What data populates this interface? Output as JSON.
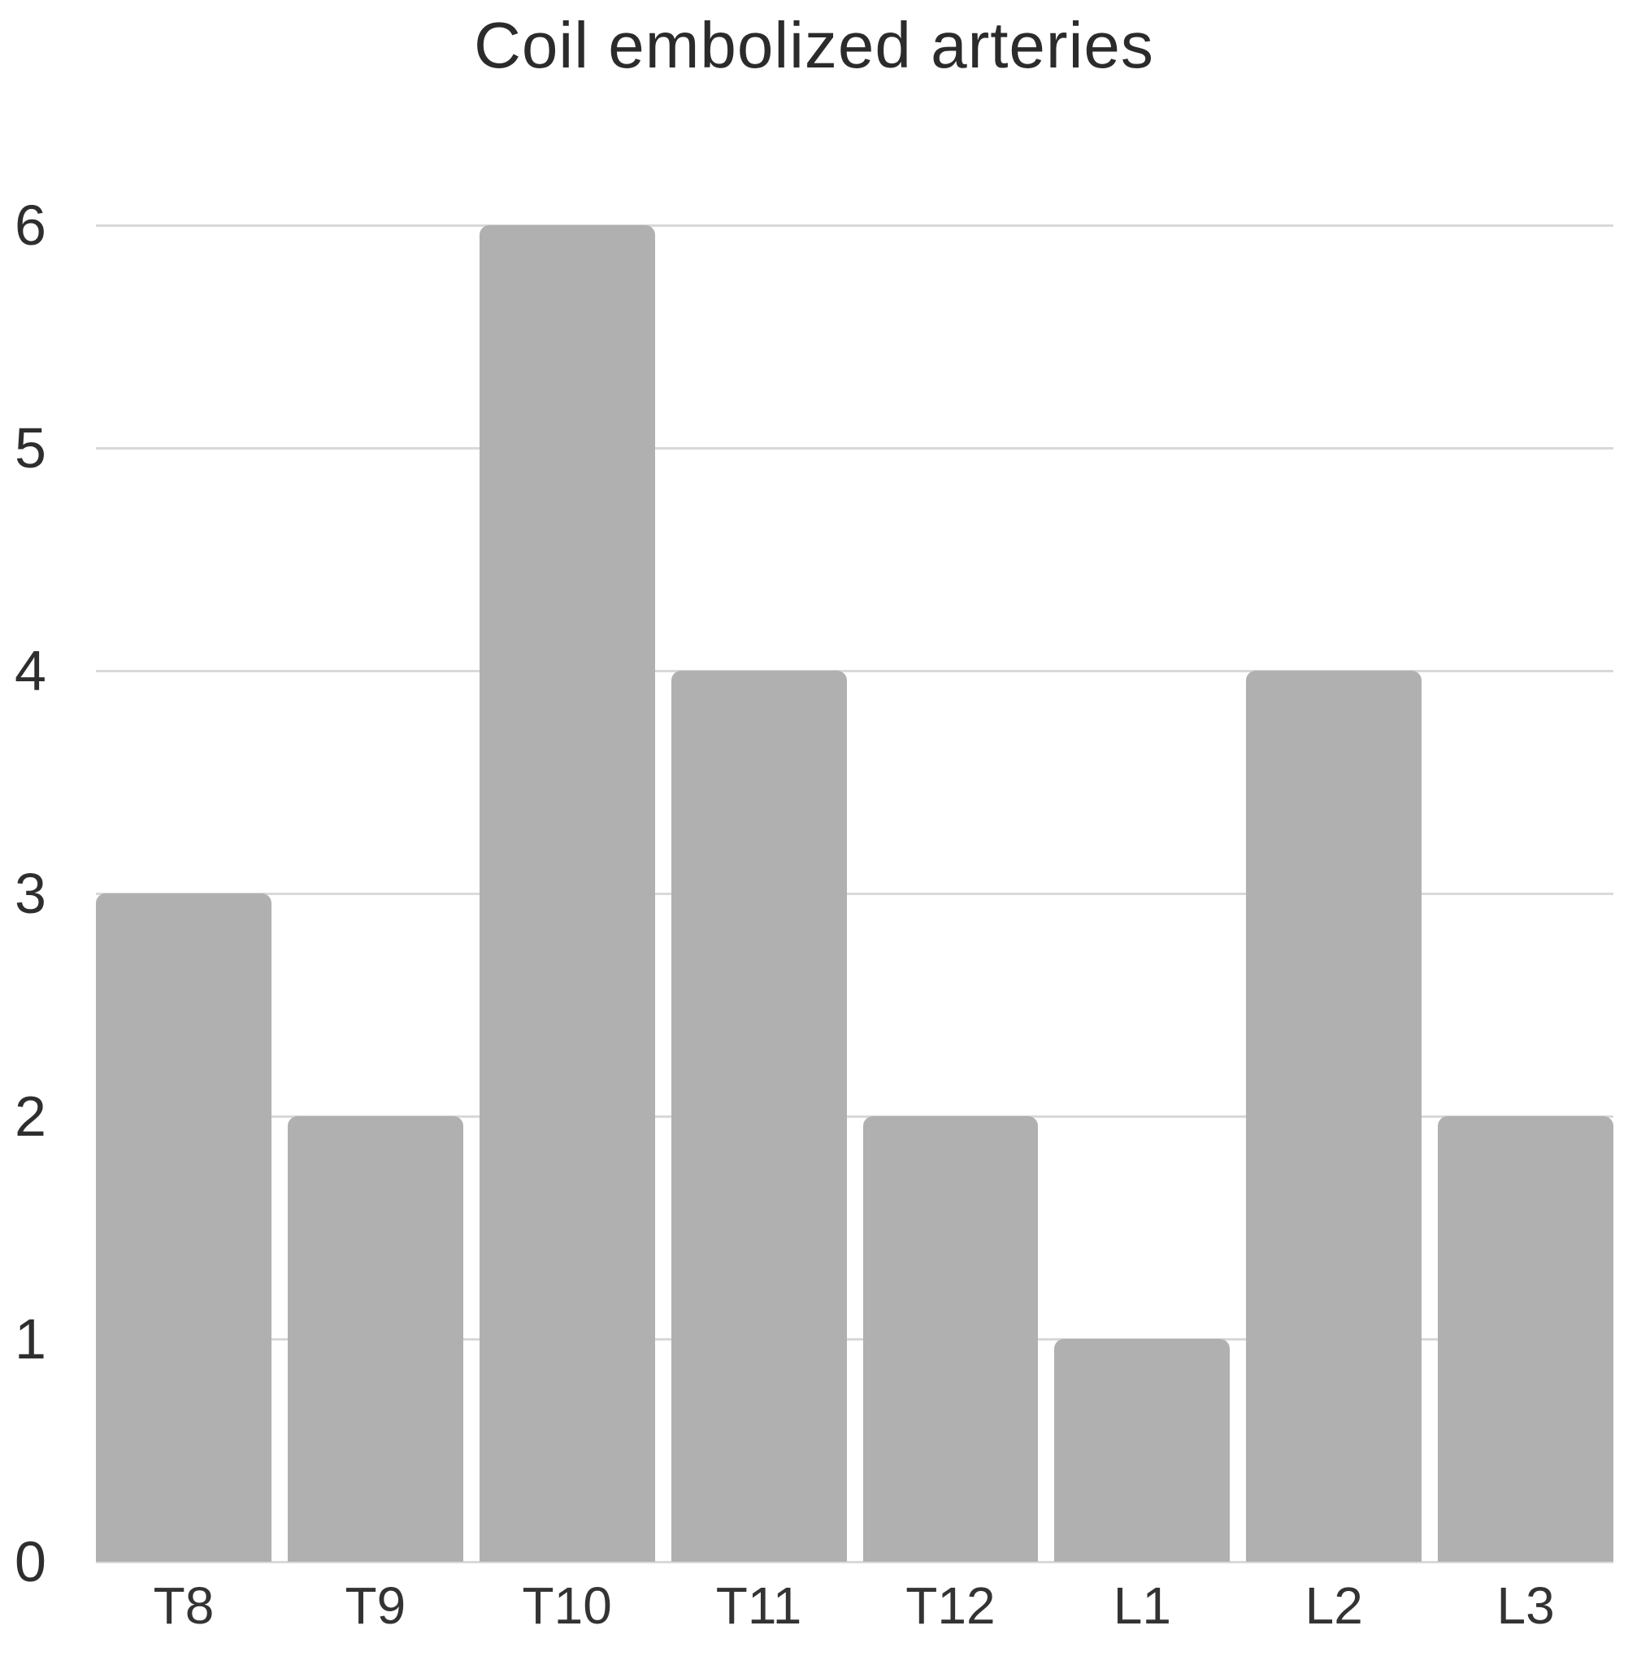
{
  "chart_data": {
    "type": "bar",
    "title": "Coil embolized arteries",
    "categories": [
      "T8",
      "T9",
      "T10",
      "T11",
      "T12",
      "L1",
      "L2",
      "L3"
    ],
    "values": [
      3,
      2,
      6,
      4,
      2,
      1,
      4,
      2
    ],
    "xlabel": "",
    "ylabel": "",
    "ylim": [
      0,
      6
    ],
    "yticks": [
      0,
      1,
      2,
      3,
      4,
      5,
      6
    ],
    "grid": "horizontal",
    "legend": "none",
    "colors": {
      "bar": "#b0b0b0",
      "gridline": "#d9d9d9",
      "title_text": "#2b2b2b",
      "y_tick_text": "#2e2e2e",
      "x_tick_text": "#333333",
      "background": "#ffffff"
    }
  }
}
